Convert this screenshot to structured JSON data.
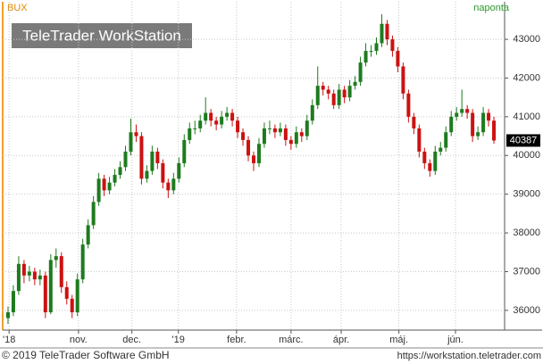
{
  "chart_data": {
    "type": "candlestick",
    "title": "BUX",
    "interval": "naponta",
    "watermark": "TeleTrader WorkStation",
    "footer_left": "© 2019 TeleTrader Software GmbH",
    "footer_right": "https://workstation.teletrader.com",
    "up_color": "#1e7b1e",
    "down_color": "#cc1111",
    "candles": [
      [
        35800,
        36100,
        35650,
        35950
      ],
      [
        35950,
        36650,
        35850,
        36500
      ],
      [
        36500,
        37400,
        36400,
        37200
      ],
      [
        37200,
        37300,
        36700,
        36900
      ],
      [
        36900,
        37150,
        36750,
        37000
      ],
      [
        37000,
        37100,
        36650,
        36800
      ],
      [
        36800,
        37050,
        36650,
        36900
      ],
      [
        36900,
        37000,
        35800,
        35950
      ],
      [
        35950,
        37450,
        35900,
        37300
      ],
      [
        37300,
        37600,
        37100,
        37400
      ],
      [
        37400,
        37500,
        36450,
        36600
      ],
      [
        36600,
        36750,
        36150,
        36300
      ],
      [
        36300,
        36400,
        35800,
        35950
      ],
      [
        35950,
        36950,
        35850,
        36800
      ],
      [
        36800,
        37850,
        36700,
        37700
      ],
      [
        37700,
        38350,
        37600,
        38200
      ],
      [
        38200,
        38950,
        38100,
        38800
      ],
      [
        38800,
        39550,
        38700,
        39400
      ],
      [
        39400,
        39500,
        38950,
        39100
      ],
      [
        39100,
        39450,
        39000,
        39300
      ],
      [
        39300,
        39650,
        39200,
        39500
      ],
      [
        39500,
        39850,
        39400,
        39700
      ],
      [
        39700,
        40250,
        39600,
        40100
      ],
      [
        40100,
        40950,
        40000,
        40600
      ],
      [
        40600,
        40800,
        40350,
        40500
      ],
      [
        40500,
        40600,
        39250,
        39400
      ],
      [
        39400,
        39750,
        39300,
        39600
      ],
      [
        39600,
        40250,
        39500,
        40100
      ],
      [
        40100,
        40200,
        39650,
        39800
      ],
      [
        39800,
        39900,
        39150,
        39300
      ],
      [
        39300,
        39400,
        38900,
        39100
      ],
      [
        39100,
        39550,
        39000,
        39400
      ],
      [
        39400,
        39950,
        39300,
        39800
      ],
      [
        39800,
        40550,
        39700,
        40400
      ],
      [
        40400,
        40850,
        40300,
        40700
      ],
      [
        40700,
        40900,
        40550,
        40700
      ],
      [
        40700,
        41050,
        40600,
        40900
      ],
      [
        40900,
        41500,
        40800,
        41100
      ],
      [
        41100,
        41200,
        40750,
        40900
      ],
      [
        40900,
        41000,
        40650,
        40800
      ],
      [
        40800,
        41150,
        40700,
        41000
      ],
      [
        41000,
        41250,
        40900,
        41100
      ],
      [
        41100,
        41200,
        40750,
        40900
      ],
      [
        40900,
        41000,
        40450,
        40600
      ],
      [
        40600,
        40700,
        40250,
        40400
      ],
      [
        40400,
        40500,
        39850,
        40000
      ],
      [
        40000,
        40100,
        39600,
        39800
      ],
      [
        39800,
        40450,
        39700,
        40300
      ],
      [
        40300,
        40850,
        40200,
        40700
      ],
      [
        40700,
        40900,
        40550,
        40700
      ],
      [
        40700,
        40800,
        40450,
        40600
      ],
      [
        40600,
        40850,
        40500,
        40700
      ],
      [
        40700,
        40800,
        40250,
        40400
      ],
      [
        40400,
        40500,
        40150,
        40300
      ],
      [
        40300,
        40750,
        40200,
        40600
      ],
      [
        40600,
        40700,
        40350,
        40500
      ],
      [
        40500,
        41050,
        40400,
        40900
      ],
      [
        40900,
        41450,
        40800,
        41300
      ],
      [
        41300,
        42300,
        41200,
        41800
      ],
      [
        41800,
        41900,
        41550,
        41700
      ],
      [
        41700,
        41800,
        41450,
        41600
      ],
      [
        41600,
        41700,
        41200,
        41300
      ],
      [
        41300,
        41850,
        41200,
        41700
      ],
      [
        41700,
        41800,
        41350,
        41500
      ],
      [
        41500,
        41950,
        41400,
        41800
      ],
      [
        41800,
        42050,
        41700,
        41900
      ],
      [
        41900,
        42550,
        41800,
        42400
      ],
      [
        42400,
        42900,
        42300,
        42700
      ],
      [
        42700,
        42850,
        42550,
        42700
      ],
      [
        42700,
        43050,
        42600,
        42900
      ],
      [
        42900,
        43650,
        42800,
        43400
      ],
      [
        43400,
        43500,
        42850,
        43000
      ],
      [
        43000,
        43100,
        42550,
        42700
      ],
      [
        42700,
        42800,
        42150,
        42300
      ],
      [
        42300,
        42400,
        41450,
        41600
      ],
      [
        41600,
        41700,
        40850,
        41000
      ],
      [
        41000,
        41100,
        40550,
        40700
      ],
      [
        40700,
        40800,
        39950,
        40100
      ],
      [
        40100,
        40200,
        39650,
        39800
      ],
      [
        39800,
        39900,
        39450,
        39600
      ],
      [
        39600,
        40250,
        39500,
        40100
      ],
      [
        40100,
        40350,
        40000,
        40200
      ],
      [
        40200,
        40750,
        40100,
        40600
      ],
      [
        40600,
        41150,
        40500,
        41000
      ],
      [
        41000,
        41250,
        40900,
        41100
      ],
      [
        41100,
        41700,
        41000,
        41200
      ],
      [
        41200,
        41300,
        40950,
        41100
      ],
      [
        41100,
        41200,
        40350,
        40500
      ],
      [
        40500,
        40750,
        40400,
        40600
      ],
      [
        40600,
        41250,
        40500,
        41100
      ],
      [
        41100,
        41200,
        40750,
        40900
      ],
      [
        40900,
        41000,
        40300,
        40387
      ]
    ],
    "xlim": [
      -1,
      93
    ],
    "xticks": [
      {
        "value": 0.2,
        "label": "'18"
      },
      {
        "value": 13.2,
        "label": "nov."
      },
      {
        "value": 23.2,
        "label": "dec."
      },
      {
        "value": 31.9,
        "label": "'19"
      },
      {
        "value": 42.8,
        "label": "febr."
      },
      {
        "value": 53,
        "label": "márc."
      },
      {
        "value": 62.4,
        "label": "ápr."
      },
      {
        "value": 73.2,
        "label": "máj."
      },
      {
        "value": 83.8,
        "label": "jún."
      }
    ],
    "ylim": [
      35490,
      43670
    ],
    "yticks": [
      36000,
      37000,
      38000,
      39000,
      40000,
      41000,
      42000,
      43000
    ],
    "grid": true
  }
}
